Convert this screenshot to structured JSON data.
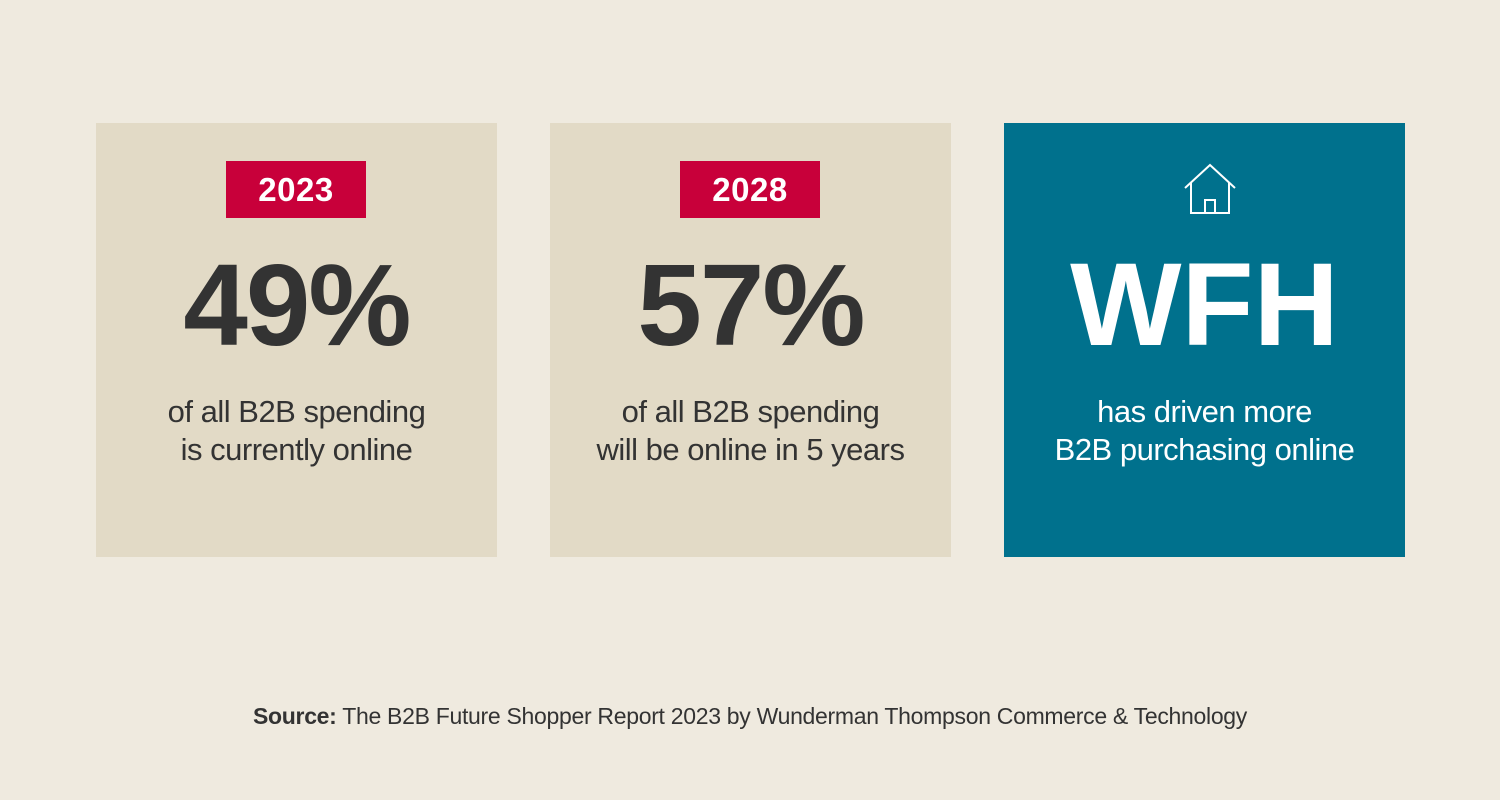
{
  "cards": [
    {
      "year": "2023",
      "value": "49%",
      "line1": "of all B2B spending",
      "line2": "is currently online",
      "background": "#e2dac6",
      "badge_color": "#c8003a"
    },
    {
      "year": "2028",
      "value": "57%",
      "line1": "of all B2B spending",
      "line2": "will be online in 5 years",
      "background": "#e2dac6",
      "badge_color": "#c8003a"
    },
    {
      "icon": "home-icon",
      "value": "WFH",
      "line1": "has driven more",
      "line2": "B2B purchasing online",
      "background": "#00718d"
    }
  ],
  "source": {
    "label": "Source:",
    "text": " The B2B Future Shopper Report 2023 by Wunderman Thompson Commerce & Technology"
  },
  "colors": {
    "page_background": "#efeadf",
    "text": "#333333",
    "accent_red": "#c8003a",
    "accent_teal": "#00718d"
  }
}
